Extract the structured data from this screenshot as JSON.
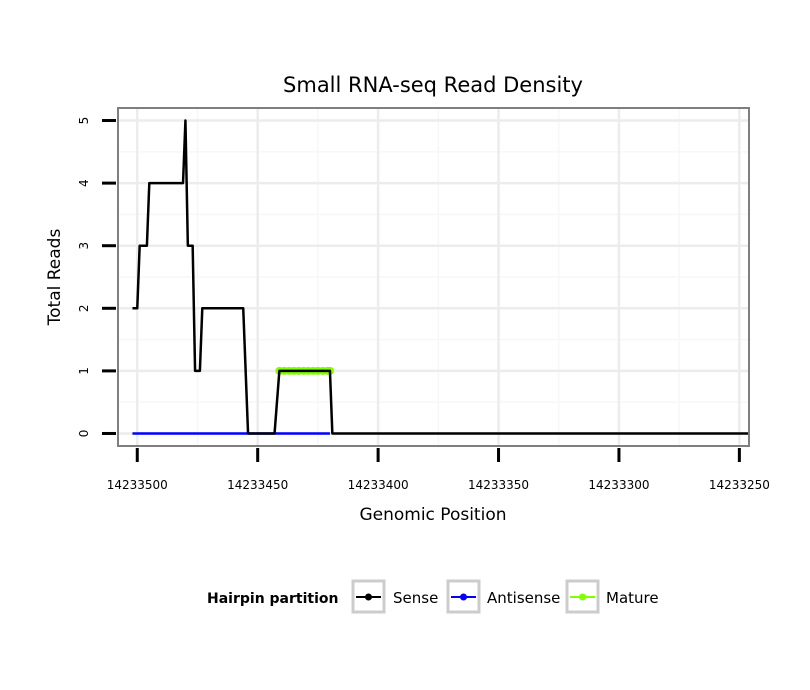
{
  "chart_data": {
    "type": "line",
    "title": "Small RNA-seq Read Density",
    "xlabel": "Genomic Position",
    "ylabel": "Total Reads",
    "xlim": [
      14233508,
      14233246
    ],
    "ylim": [
      -0.2,
      5.2
    ],
    "x_reversed": true,
    "grid": true,
    "x_ticks": [
      14233500,
      14233450,
      14233400,
      14233350,
      14233300,
      14233250
    ],
    "x_tick_labels": [
      "14233500",
      "14233450",
      "14233400",
      "14233350",
      "14233300",
      "14233250"
    ],
    "y_ticks": [
      0,
      1,
      2,
      3,
      4,
      5
    ],
    "y_tick_labels": [
      "0",
      "1",
      "2",
      "3",
      "4",
      "5"
    ],
    "legend": {
      "title": "Hairpin partition",
      "position": "bottom",
      "entries": [
        {
          "label": "Sense",
          "color": "#000000"
        },
        {
          "label": "Antisense",
          "color": "#0000ff"
        },
        {
          "label": "Mature",
          "color": "#7fff00"
        }
      ]
    },
    "series": [
      {
        "name": "Sense",
        "color": "#000000",
        "x": [
          14233502,
          14233500,
          14233499,
          14233496,
          14233495,
          14233481,
          14233480,
          14233479,
          14233477,
          14233476,
          14233474,
          14233473,
          14233472,
          14233456,
          14233454,
          14233443,
          14233441,
          14233420,
          14233419,
          14233246
        ],
        "y": [
          2,
          2,
          3,
          3,
          4,
          4,
          5,
          3,
          3,
          1,
          1,
          2,
          2,
          2,
          0,
          0,
          1,
          1,
          0,
          0
        ]
      },
      {
        "name": "Antisense",
        "color": "#0000ff",
        "x": [
          14233502,
          14233420
        ],
        "y": [
          0,
          0
        ]
      },
      {
        "name": "Mature",
        "color": "#7fff00",
        "x": [
          14233441,
          14233439,
          14233437,
          14233435,
          14233433,
          14233431,
          14233429,
          14233427,
          14233425,
          14233423,
          14233421,
          14233420
        ],
        "y": [
          1,
          1,
          1,
          1,
          1,
          1,
          1,
          1,
          1,
          1,
          1,
          1
        ]
      }
    ]
  }
}
